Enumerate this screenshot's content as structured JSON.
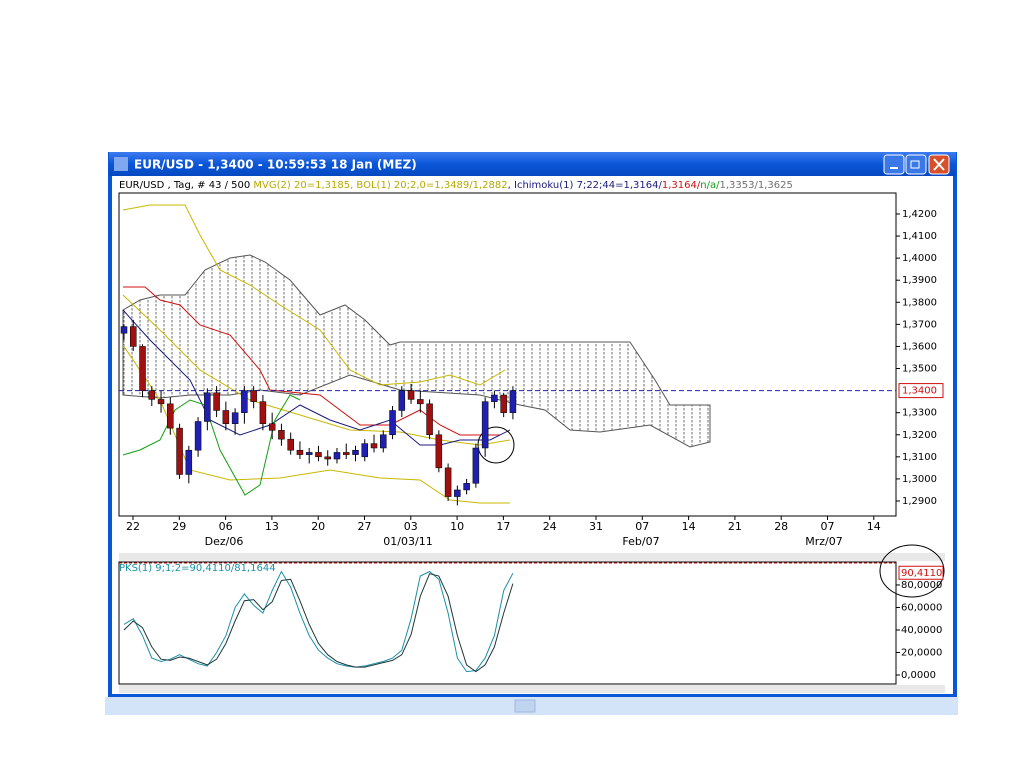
{
  "window": {
    "title": "EUR/USD - 1,3400 - 10:59:53  18 Jan (MEZ)"
  },
  "chart_data": {
    "type": "candlestick",
    "header": [
      "EUR/USD , Tag, # 43 / 500 ",
      "MVG(2) 20=1,3185, BOL(1) 20;2,0=1,3489/1,2882",
      ", Ichimoku(1) 7;22;44=1,3164/",
      "1,3164/",
      "n/a/",
      "1,3353/1,3625"
    ],
    "header_colors": [
      "#000000",
      "#b8a800",
      "#1a1a80",
      "#d01010",
      "#10a010",
      "#707070"
    ],
    "up_color": "#2020b0",
    "down_color": "#a01010",
    "candles": [
      [
        1.366,
        1.37,
        1.363,
        1.369
      ],
      [
        1.369,
        1.372,
        1.358,
        1.36
      ],
      [
        1.36,
        1.361,
        1.337,
        1.34
      ],
      [
        1.34,
        1.342,
        1.333,
        1.336
      ],
      [
        1.336,
        1.34,
        1.33,
        1.334
      ],
      [
        1.334,
        1.337,
        1.32,
        1.323
      ],
      [
        1.323,
        1.325,
        1.3,
        1.302
      ],
      [
        1.302,
        1.315,
        1.298,
        1.313
      ],
      [
        1.313,
        1.328,
        1.31,
        1.326
      ],
      [
        1.326,
        1.341,
        1.322,
        1.339
      ],
      [
        1.339,
        1.342,
        1.328,
        1.331
      ],
      [
        1.331,
        1.335,
        1.322,
        1.325
      ],
      [
        1.325,
        1.332,
        1.32,
        1.33
      ],
      [
        1.33,
        1.342,
        1.325,
        1.34
      ],
      [
        1.34,
        1.342,
        1.332,
        1.335
      ],
      [
        1.335,
        1.338,
        1.322,
        1.325
      ],
      [
        1.325,
        1.33,
        1.318,
        1.322
      ],
      [
        1.322,
        1.325,
        1.315,
        1.318
      ],
      [
        1.318,
        1.321,
        1.311,
        1.313
      ],
      [
        1.313,
        1.317,
        1.309,
        1.311
      ],
      [
        1.311,
        1.314,
        1.307,
        1.312
      ],
      [
        1.312,
        1.315,
        1.308,
        1.31
      ],
      [
        1.31,
        1.313,
        1.306,
        1.309
      ],
      [
        1.309,
        1.314,
        1.307,
        1.312
      ],
      [
        1.312,
        1.316,
        1.309,
        1.311
      ],
      [
        1.311,
        1.315,
        1.308,
        1.313
      ],
      [
        1.31,
        1.318,
        1.308,
        1.316
      ],
      [
        1.316,
        1.32,
        1.312,
        1.314
      ],
      [
        1.314,
        1.322,
        1.312,
        1.32
      ],
      [
        1.32,
        1.333,
        1.318,
        1.331
      ],
      [
        1.331,
        1.342,
        1.328,
        1.34
      ],
      [
        1.34,
        1.343,
        1.334,
        1.336
      ],
      [
        1.336,
        1.34,
        1.33,
        1.334
      ],
      [
        1.334,
        1.336,
        1.318,
        1.32
      ],
      [
        1.32,
        1.322,
        1.303,
        1.305
      ],
      [
        1.305,
        1.307,
        1.29,
        1.292
      ],
      [
        1.292,
        1.297,
        1.288,
        1.295
      ],
      [
        1.295,
        1.3,
        1.293,
        1.298
      ],
      [
        1.298,
        1.316,
        1.296,
        1.314
      ],
      [
        1.314,
        1.337,
        1.31,
        1.335
      ],
      [
        1.335,
        1.34,
        1.332,
        1.338
      ],
      [
        1.338,
        1.339,
        1.328,
        1.33
      ],
      [
        1.33,
        1.342,
        1.327,
        1.34
      ]
    ],
    "ylim": [
      1.2832,
      1.4295
    ],
    "yticks": [
      {
        "value": 1.42,
        "label": "1,4200"
      },
      {
        "value": 1.41,
        "label": "1,4100"
      },
      {
        "value": 1.4,
        "label": "1,4000"
      },
      {
        "value": 1.39,
        "label": "1,3900"
      },
      {
        "value": 1.38,
        "label": "1,3800"
      },
      {
        "value": 1.37,
        "label": "1,3700"
      },
      {
        "value": 1.36,
        "label": "1,3600"
      },
      {
        "value": 1.35,
        "label": "1,3500"
      },
      {
        "value": 1.33,
        "label": "1,3300"
      },
      {
        "value": 1.32,
        "label": "1,3200"
      },
      {
        "value": 1.31,
        "label": "1,3100"
      },
      {
        "value": 1.3,
        "label": "1,3000"
      },
      {
        "value": 1.29,
        "label": "1,2900"
      }
    ],
    "current_price": {
      "value": 1.34,
      "label": "1,3400"
    },
    "xticks": [
      "22",
      "29",
      "06",
      "13",
      "20",
      "27",
      "03",
      "10",
      "17",
      "24",
      "31",
      "07",
      "14",
      "21",
      "28",
      "07",
      "14"
    ],
    "months": [
      "Dez/06",
      "01/03/11",
      "Feb/07",
      "Mrz/07"
    ]
  },
  "indicator": {
    "type": "line",
    "label": "PKS(1) 9;1;2=90,4110/81,1644",
    "series": [
      {
        "color": "#1890a8",
        "values": [
          45,
          50,
          35,
          15,
          12,
          14,
          18,
          14,
          10,
          8,
          20,
          35,
          60,
          72,
          62,
          55,
          75,
          92,
          78,
          55,
          35,
          22,
          15,
          10,
          8,
          7,
          8,
          10,
          12,
          15,
          22,
          50,
          88,
          92,
          85,
          55,
          15,
          3,
          4,
          15,
          35,
          75,
          90.411
        ]
      },
      {
        "color": "#203838",
        "values": [
          40,
          48,
          42,
          25,
          14,
          13,
          16,
          15,
          12,
          9,
          14,
          28,
          48,
          66,
          67,
          58,
          65,
          84,
          85,
          66,
          45,
          28,
          18,
          12,
          9,
          7,
          7,
          9,
          11,
          13,
          18,
          36,
          70,
          90,
          88,
          70,
          35,
          9,
          3,
          9,
          25,
          55,
          81.1644
        ]
      }
    ],
    "ylim": [
      -8,
      100.4
    ],
    "yticks": [
      {
        "value": 80,
        "label": "80,0000"
      },
      {
        "value": 60,
        "label": "60,0000"
      },
      {
        "value": 40,
        "label": "40,0000"
      },
      {
        "value": 20,
        "label": "20,0000"
      },
      {
        "value": 0,
        "label": "0,0000"
      }
    ],
    "last_value": {
      "value": 90.411,
      "label": "90,4110"
    }
  }
}
